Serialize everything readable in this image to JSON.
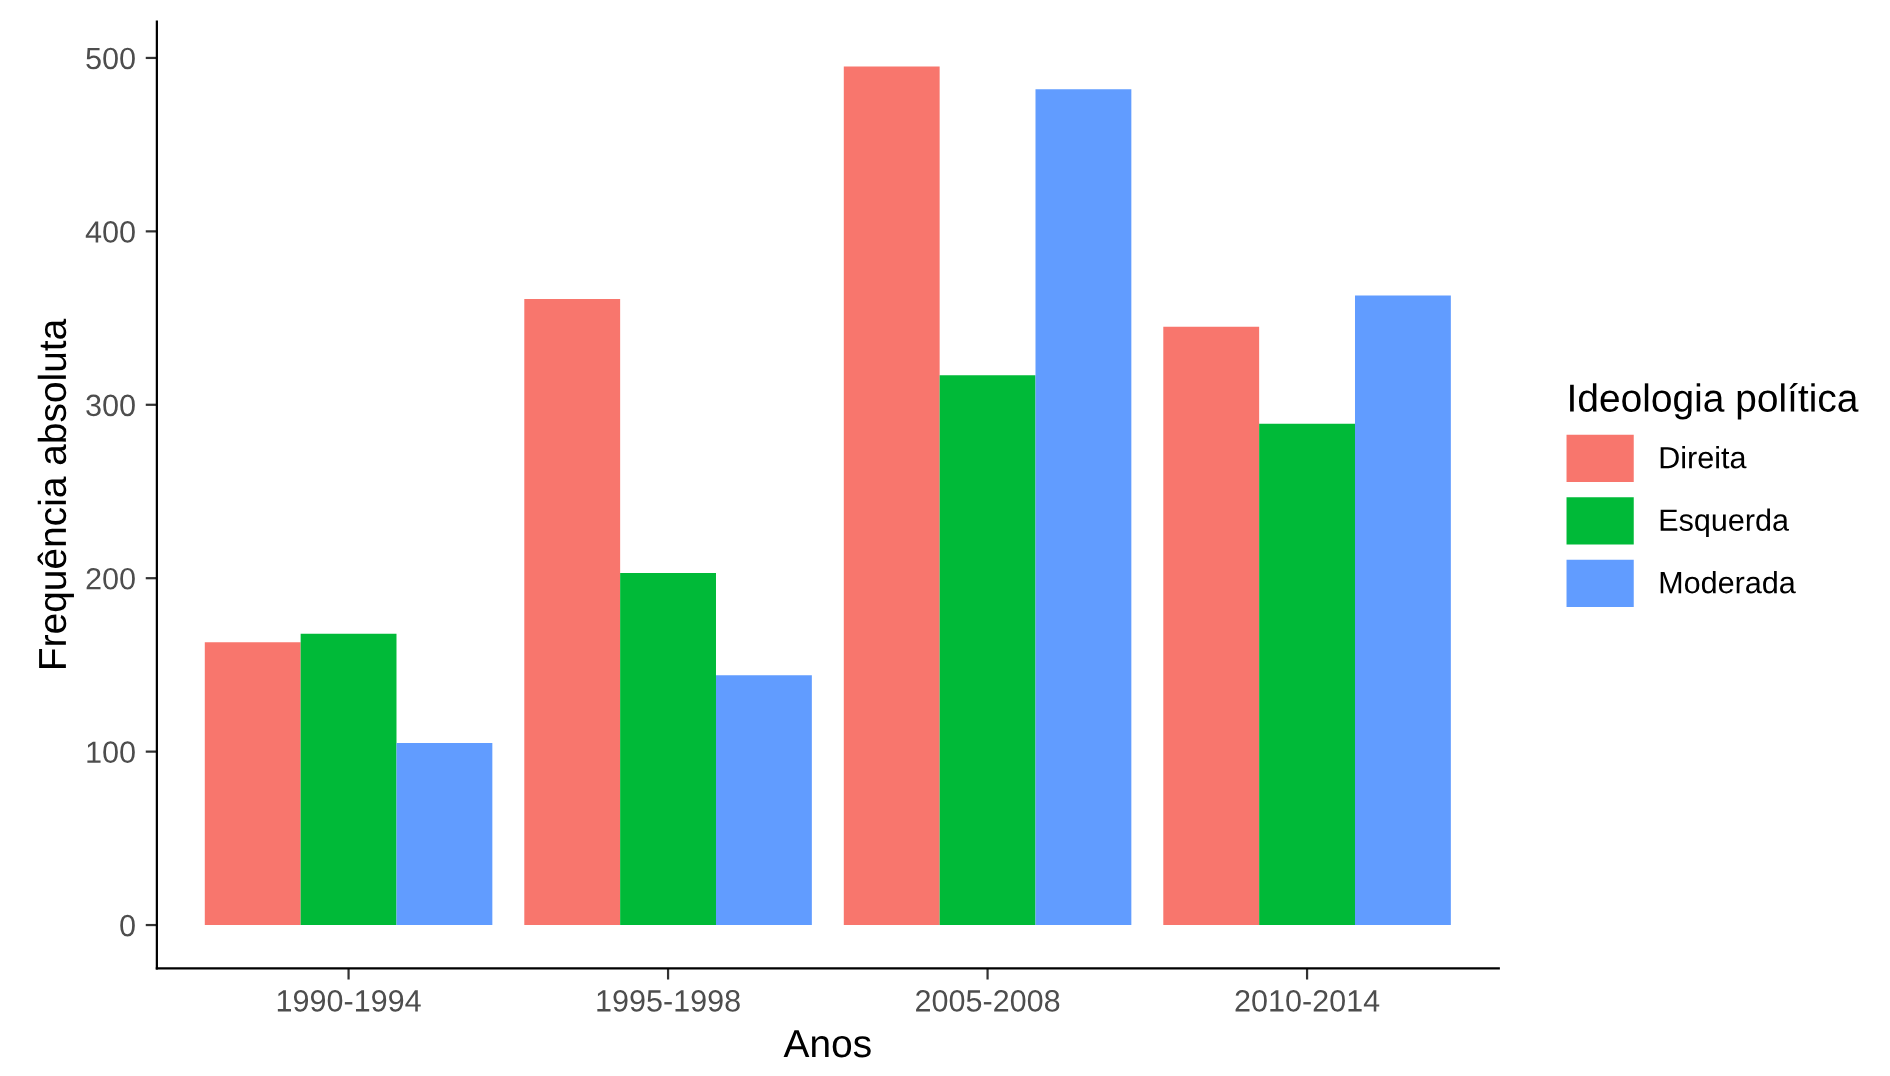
{
  "chart_data": {
    "type": "bar",
    "xlabel": "Anos",
    "ylabel": "Frequência absoluta",
    "legend_title": "Ideologia política",
    "categories": [
      "1990-1994",
      "1995-1998",
      "2005-2008",
      "2010-2014"
    ],
    "series": [
      {
        "name": "Direita",
        "color": "#f8766d",
        "values": [
          163,
          361,
          495,
          345
        ]
      },
      {
        "name": "Esquerda",
        "color": "#00ba38",
        "values": [
          168,
          203,
          317,
          289
        ]
      },
      {
        "name": "Moderada",
        "color": "#619cff",
        "values": [
          105,
          144,
          482,
          363
        ]
      }
    ],
    "ylim": [
      -25,
      521
    ],
    "yticks": [
      0,
      100,
      200,
      300,
      400,
      500
    ],
    "grid": false,
    "legend": "right"
  }
}
